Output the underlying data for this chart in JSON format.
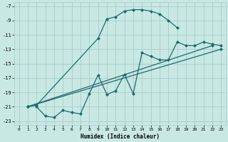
{
  "xlabel": "Humidex (Indice chaleur)",
  "bg_color": "#c8e8e4",
  "grid_color": "#a8ccc8",
  "line_color": "#1a6b6b",
  "xlim": [
    -0.5,
    23.5
  ],
  "ylim": [
    -23.5,
    -6.5
  ],
  "xticks": [
    0,
    1,
    2,
    3,
    4,
    5,
    6,
    7,
    8,
    9,
    10,
    11,
    12,
    13,
    14,
    15,
    16,
    17,
    18,
    19,
    20,
    21,
    22,
    23
  ],
  "yticks": [
    -23,
    -21,
    -19,
    -17,
    -15,
    -13,
    -11,
    -9,
    -7
  ],
  "line1_x": [
    1,
    2,
    9,
    10,
    11,
    12,
    13,
    14,
    15,
    16,
    17,
    18
  ],
  "line1_y": [
    -21,
    -20.8,
    -11.5,
    -8.8,
    -8.5,
    -7.7,
    -7.5,
    -7.5,
    -7.7,
    -8.1,
    -9.0,
    -10.0
  ],
  "line2_x": [
    2,
    3,
    4,
    5,
    6,
    7,
    8,
    9,
    10,
    11,
    12,
    13,
    14,
    15,
    16,
    17,
    18,
    19,
    20,
    21,
    22,
    23
  ],
  "line2_y": [
    -21,
    -22.3,
    -22.5,
    -21.5,
    -21.8,
    -22.0,
    -19.2,
    -16.6,
    -19.3,
    -18.8,
    -16.5,
    -19.2,
    -13.5,
    -14.0,
    -14.5,
    -14.5,
    -12.0,
    -12.5,
    -12.5,
    -12.0,
    -12.3,
    -12.5
  ],
  "line3_x": [
    1,
    22
  ],
  "line3_y": [
    -21,
    -12.5
  ],
  "line4_x": [
    1,
    23
  ],
  "line4_y": [
    -21,
    -13.0
  ]
}
